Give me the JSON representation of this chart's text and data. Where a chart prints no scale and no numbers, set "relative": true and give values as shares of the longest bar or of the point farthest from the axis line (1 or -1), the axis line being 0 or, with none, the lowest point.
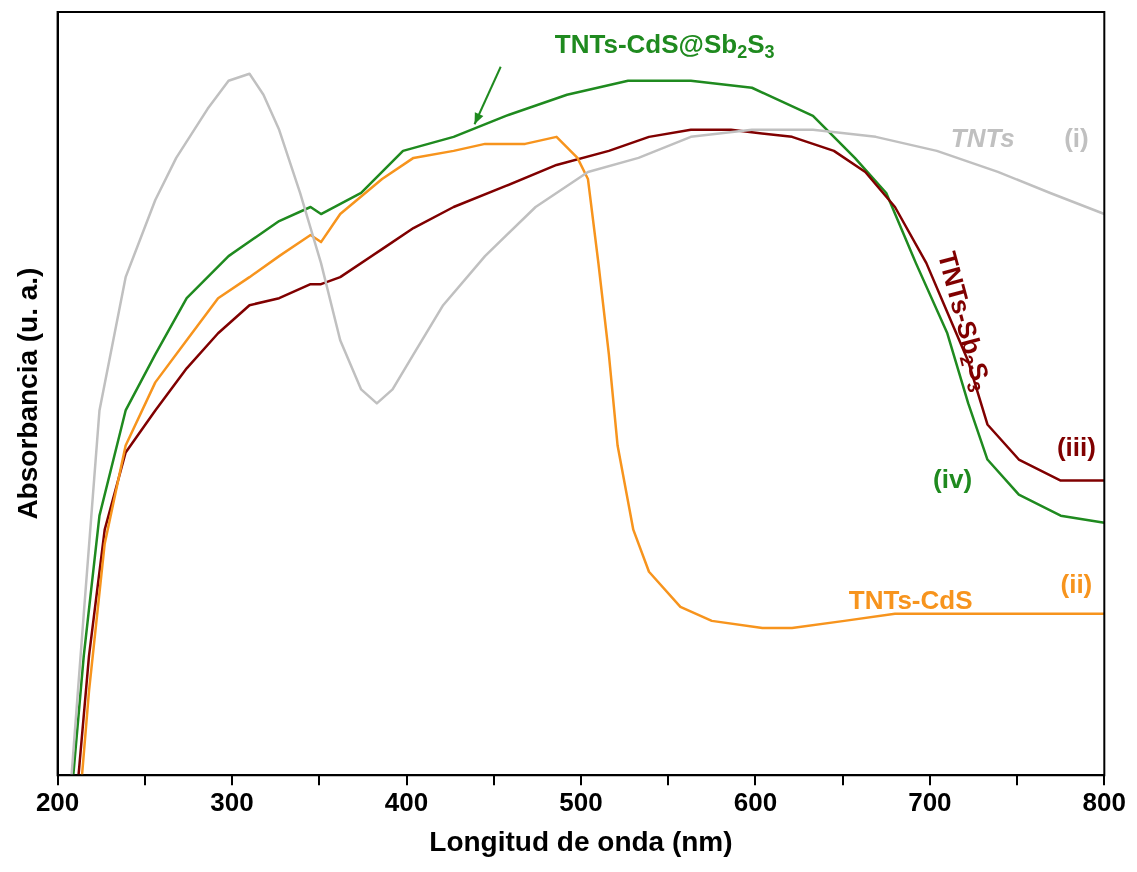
{
  "chart_data": {
    "type": "line",
    "relative": true,
    "xlabel": "Longitud de onda (nm)",
    "ylabel": "Absorbancia (u. a.)",
    "xlim": [
      200,
      800
    ],
    "xticks": [
      200,
      {
        "value": 250,
        "label": null
      },
      300,
      {
        "value": 350,
        "label": null
      },
      400,
      {
        "value": 450,
        "label": null
      },
      500,
      {
        "value": 550,
        "label": null
      },
      600,
      {
        "value": 650,
        "label": null
      },
      700,
      {
        "value": 750,
        "label": null
      },
      800
    ],
    "grid": false,
    "legend": false,
    "marker": "none",
    "line_style": "solid",
    "series": [
      {
        "name": "TNTs",
        "color": "#c0c0c0",
        "x": [
          208,
          215,
          224,
          239,
          256,
          268,
          286,
          298,
          310,
          318,
          327,
          339,
          351,
          362,
          374,
          383,
          392,
          404,
          421,
          445,
          474,
          504,
          533,
          563,
          598,
          633,
          669,
          704,
          739,
          769,
          800
        ],
        "values": [
          0,
          0.23,
          0.52,
          0.71,
          0.82,
          0.88,
          0.95,
          0.99,
          1.0,
          0.97,
          0.92,
          0.83,
          0.73,
          0.62,
          0.55,
          0.53,
          0.55,
          0.6,
          0.67,
          0.74,
          0.81,
          0.86,
          0.88,
          0.91,
          0.92,
          0.92,
          0.91,
          0.89,
          0.86,
          0.83,
          0.8
        ]
      },
      {
        "name": "TNTs-CdS",
        "color": "#f7941d",
        "x": [
          214,
          218,
          227,
          239,
          256,
          274,
          292,
          310,
          327,
          345,
          351,
          362,
          386,
          404,
          427,
          445,
          468,
          486,
          498,
          504,
          510,
          516,
          521,
          530,
          539,
          557,
          575,
          604,
          621,
          651,
          680,
          716,
          763,
          800
        ],
        "values": [
          0,
          0.12,
          0.33,
          0.47,
          0.56,
          0.62,
          0.68,
          0.71,
          0.74,
          0.77,
          0.76,
          0.8,
          0.85,
          0.88,
          0.89,
          0.9,
          0.9,
          0.91,
          0.88,
          0.85,
          0.73,
          0.6,
          0.47,
          0.35,
          0.29,
          0.24,
          0.22,
          0.21,
          0.21,
          0.22,
          0.23,
          0.23,
          0.23,
          0.23
        ]
      },
      {
        "name": "TNTs-Sb$_{2}$S$_{3}$",
        "color": "#800000",
        "x": [
          212,
          218,
          227,
          239,
          256,
          274,
          292,
          310,
          327,
          345,
          351,
          362,
          386,
          404,
          427,
          457,
          486,
          516,
          539,
          563,
          586,
          621,
          645,
          663,
          680,
          698,
          710,
          722,
          733,
          751,
          775,
          800
        ],
        "values": [
          0,
          0.17,
          0.35,
          0.46,
          0.52,
          0.58,
          0.63,
          0.67,
          0.68,
          0.7,
          0.7,
          0.71,
          0.75,
          0.78,
          0.81,
          0.84,
          0.87,
          0.89,
          0.91,
          0.92,
          0.92,
          0.91,
          0.89,
          0.86,
          0.81,
          0.73,
          0.66,
          0.59,
          0.5,
          0.45,
          0.42,
          0.42
        ]
      },
      {
        "name": "TNTs-CdS@Sb$_{2}$S$_{3}$",
        "color": "#1f8a1f",
        "x": [
          209,
          215,
          224,
          239,
          256,
          274,
          298,
          327,
          345,
          351,
          374,
          398,
          427,
          457,
          492,
          527,
          563,
          598,
          633,
          657,
          675,
          692,
          710,
          722,
          733,
          751,
          775,
          800
        ],
        "values": [
          0,
          0.17,
          0.37,
          0.52,
          0.6,
          0.68,
          0.74,
          0.79,
          0.81,
          0.8,
          0.83,
          0.89,
          0.91,
          0.94,
          0.97,
          0.99,
          0.99,
          0.98,
          0.94,
          0.88,
          0.83,
          0.73,
          0.63,
          0.53,
          0.45,
          0.4,
          0.37,
          0.36
        ]
      }
    ],
    "annotations": [
      "(i)",
      "(ii)",
      "(iii)",
      "(iv)"
    ]
  }
}
